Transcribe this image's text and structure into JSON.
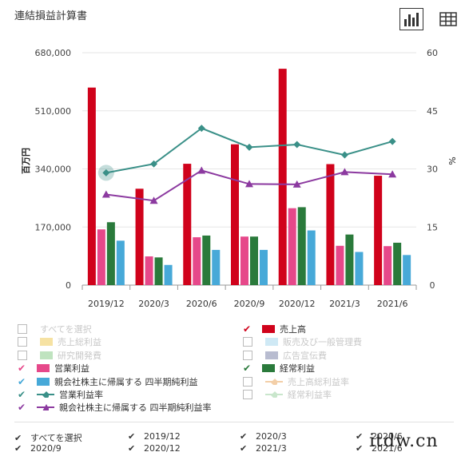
{
  "header": {
    "title": "連結損益計算書"
  },
  "colors": {
    "sales": "#d0021b",
    "operating": "#e6488a",
    "ordinary": "#2a7a3b",
    "net": "#47a9d8",
    "op_margin": "#3a9088",
    "net_margin": "#8c3aa0",
    "grid": "#e6e6e6"
  },
  "chart_data": {
    "type": "bar",
    "categories": [
      "2019/12",
      "2020/3",
      "2020/6",
      "2020/9",
      "2020/12",
      "2021/3",
      "2021/6"
    ],
    "ylabel": "百万円",
    "y2label": "%",
    "ylim": [
      0,
      680000
    ],
    "y2lim": [
      0,
      60
    ],
    "yticks": [
      "680,000",
      "510,000",
      "340,000",
      "170,000",
      "0"
    ],
    "y2ticks": [
      "60",
      "45",
      "30",
      "15",
      "0"
    ],
    "series": [
      {
        "name": "売上高",
        "type": "bar",
        "axis": "left",
        "values": [
          578000,
          282000,
          355000,
          412000,
          633000,
          354000,
          320000
        ]
      },
      {
        "name": "営業利益",
        "type": "bar",
        "axis": "left",
        "values": [
          163000,
          84000,
          140000,
          142000,
          225000,
          115000,
          114000
        ]
      },
      {
        "name": "経常利益",
        "type": "bar",
        "axis": "left",
        "values": [
          184000,
          81000,
          145000,
          142000,
          228000,
          148000,
          124000
        ]
      },
      {
        "name": "親会社株主に帰属する四半期純利益",
        "type": "bar",
        "axis": "left",
        "values": [
          130000,
          59000,
          103000,
          103000,
          160000,
          97000,
          88000
        ]
      },
      {
        "name": "営業利益率",
        "type": "line",
        "axis": "right",
        "marker": "diamond",
        "values": [
          29.0,
          31.3,
          40.5,
          35.6,
          36.3,
          33.6,
          37.1
        ]
      },
      {
        "name": "親会社株主に帰属する 四半期純利益率",
        "type": "line",
        "axis": "right",
        "marker": "triangle",
        "values": [
          23.4,
          21.8,
          29.6,
          26.1,
          26.0,
          29.2,
          28.6
        ]
      }
    ],
    "grid": true
  },
  "legend": {
    "left": [
      {
        "label": "すべてを選択",
        "state": "off",
        "kind": "box"
      },
      {
        "label": "売上総利益",
        "state": "off",
        "kind": "swatch",
        "color": "#f6e2a3"
      },
      {
        "label": "研究開発費",
        "state": "off",
        "kind": "swatch",
        "color": "#bfe3bf"
      },
      {
        "label": "営業利益",
        "state": "on",
        "kind": "swatch",
        "color": "#e6488a"
      },
      {
        "label": "親会社株主に帰属する 四半期純利益",
        "state": "on",
        "kind": "swatch",
        "color": "#47a9d8"
      },
      {
        "label": "営業利益率",
        "state": "on",
        "kind": "line",
        "marker": "diamond",
        "color": "#3a9088"
      },
      {
        "label": "親会社株主に帰属する 四半期純利益率",
        "state": "on",
        "kind": "line",
        "marker": "triangle",
        "color": "#8c3aa0"
      }
    ],
    "right": [
      {
        "label": "売上高",
        "state": "on",
        "kind": "swatch",
        "color": "#d0021b"
      },
      {
        "label": "販売及び一般管理費",
        "state": "off",
        "kind": "swatch",
        "color": "#cfe9f5"
      },
      {
        "label": "広告宣伝費",
        "state": "off",
        "kind": "swatch",
        "color": "#b8bcd0"
      },
      {
        "label": "経常利益",
        "state": "on",
        "kind": "swatch",
        "color": "#2a7a3b"
      },
      {
        "label": "売上高総利益率",
        "state": "off",
        "kind": "line",
        "marker": "diamond",
        "color": "#f3cfa8"
      },
      {
        "label": "経常利益率",
        "state": "off",
        "kind": "line",
        "marker": "diamond",
        "color": "#c9e6cc"
      }
    ]
  },
  "filters": [
    {
      "label": "すべてを選択"
    },
    {
      "label": "2019/12"
    },
    {
      "label": "2020/3"
    },
    {
      "label": "2020/6"
    },
    {
      "label": "2020/9"
    },
    {
      "label": "2020/12"
    },
    {
      "label": "2021/3"
    },
    {
      "label": "2021/6"
    }
  ],
  "watermark": "itdw.cn"
}
